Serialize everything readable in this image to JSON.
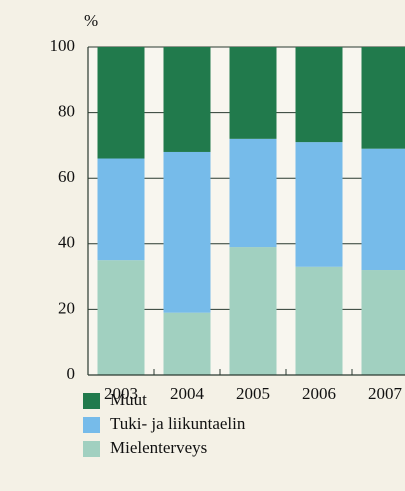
{
  "chart_data": {
    "type": "stacked_bar",
    "y_label": "%",
    "categories": [
      "2003",
      "2004",
      "2005",
      "2006",
      "2007"
    ],
    "series": [
      {
        "name": "Muut",
        "color": "#217a4c",
        "values": [
          34,
          32,
          28,
          29,
          31
        ]
      },
      {
        "name": "Tuki- ja liikuntaelin",
        "color": "#76bbea",
        "values": [
          31,
          49,
          33,
          38,
          37
        ]
      },
      {
        "name": "Mielenterveys",
        "color": "#a1d0c0",
        "values": [
          35,
          19,
          39,
          33,
          32
        ]
      }
    ],
    "ylim": [
      0,
      100
    ],
    "yticks": [
      0,
      20,
      40,
      60,
      80,
      100
    ],
    "grid": true
  }
}
